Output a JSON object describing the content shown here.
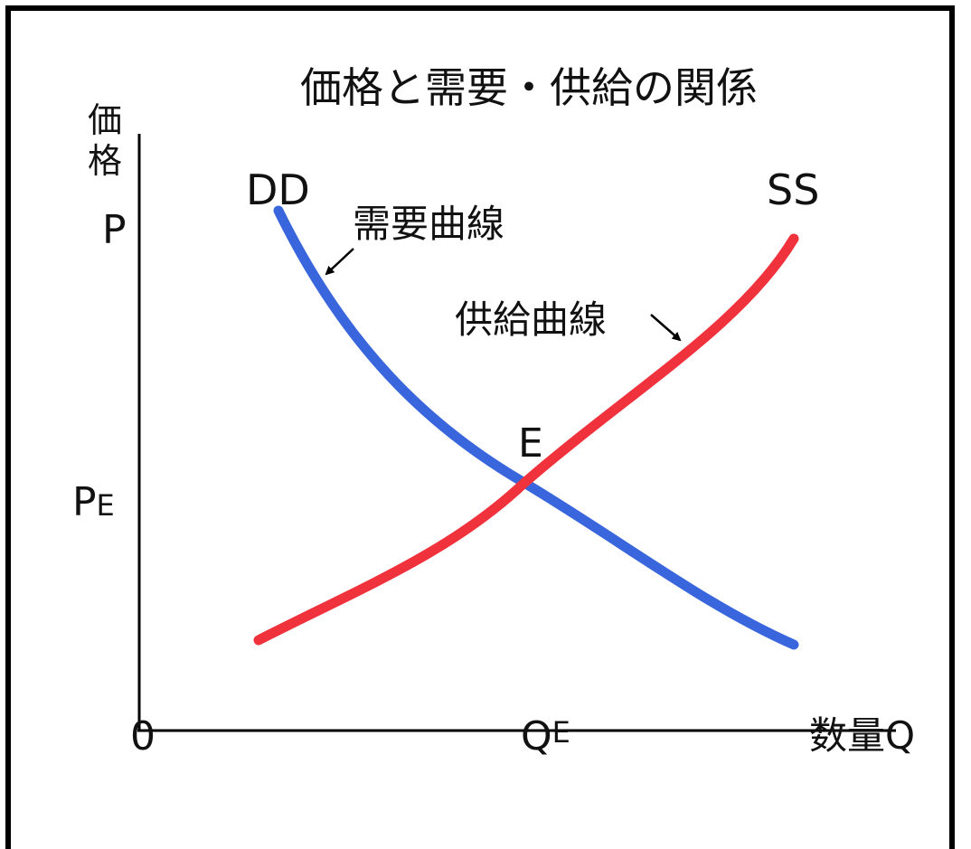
{
  "title": "価格と需要・供給の関係",
  "y_axis": {
    "label_chars": [
      "価",
      "格"
    ],
    "symbol": "P"
  },
  "x_axis": {
    "origin": "0",
    "label": "数量Q"
  },
  "equilibrium": {
    "point": "E",
    "price_main": "P",
    "price_sub": "E",
    "qty_main": "Q",
    "qty_sub": "E"
  },
  "demand": {
    "tag": "DD",
    "label": "需要曲線",
    "color": "#3a66dd"
  },
  "supply": {
    "tag": "SS",
    "label": "供給曲線",
    "color": "#f0323c"
  },
  "axis_color": "#000000"
}
